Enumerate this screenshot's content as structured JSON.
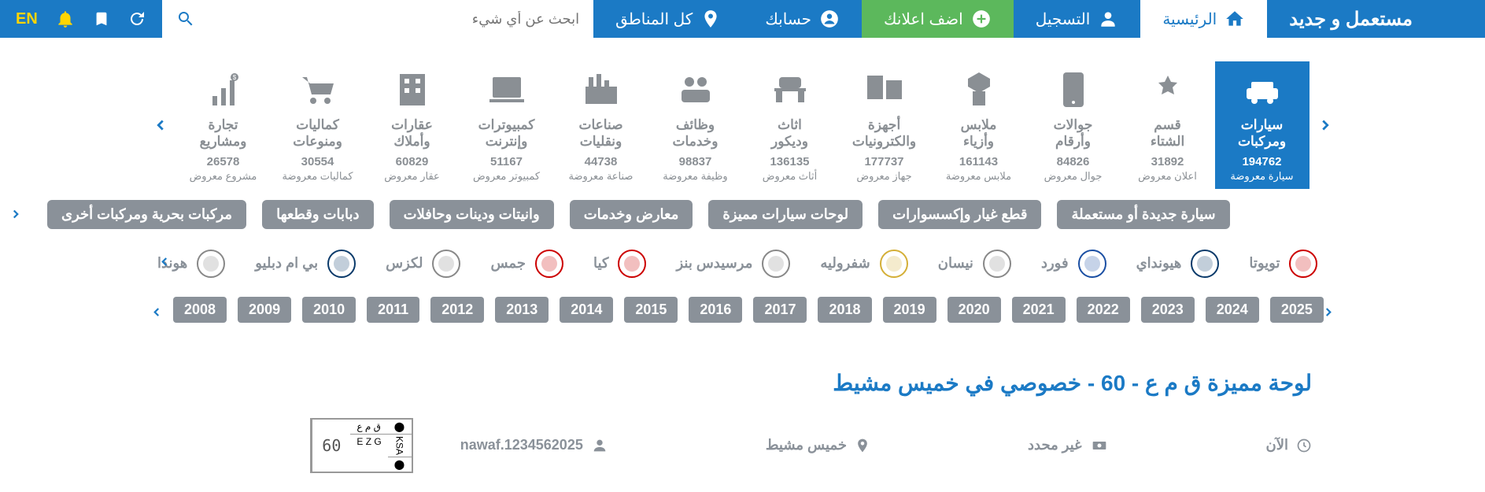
{
  "header": {
    "logo": "مستعمل و جديد",
    "home": "الرئيسية",
    "register": "التسجيل",
    "add_ad": "اضف اعلانك",
    "account": "حسابك",
    "regions": "كل المناطق",
    "search_placeholder": "ابحث عن أي شيء",
    "lang": "EN"
  },
  "categories": [
    {
      "title": "سيارات\nومركبات",
      "count": "194762",
      "sub": "سيارة معروضة",
      "active": true
    },
    {
      "title": "قسم\nالشتاء",
      "count": "31892",
      "sub": "اعلان معروض"
    },
    {
      "title": "جوالات\nوأرقام",
      "count": "84826",
      "sub": "جوال معروض"
    },
    {
      "title": "ملابس\nوأزياء",
      "count": "161143",
      "sub": "ملابس معروضة"
    },
    {
      "title": "أجهزة\nوالكترونيات",
      "count": "177737",
      "sub": "جهاز معروض"
    },
    {
      "title": "اثاث\nوديكور",
      "count": "136135",
      "sub": "أثاث معروض"
    },
    {
      "title": "وظائف\nوخدمات",
      "count": "98837",
      "sub": "وظيفة معروضة"
    },
    {
      "title": "صناعات\nونقليات",
      "count": "44738",
      "sub": "صناعة معروضة"
    },
    {
      "title": "كمبيوترات\nوإنترنت",
      "count": "51167",
      "sub": "كمبيوتر معروض"
    },
    {
      "title": "عقارات\nوأملاك",
      "count": "60829",
      "sub": "عقار معروض"
    },
    {
      "title": "كماليات\nومنوعات",
      "count": "30554",
      "sub": "كماليات معروضة"
    },
    {
      "title": "تجارة\nومشاريع",
      "count": "26578",
      "sub": "مشروع معروض"
    }
  ],
  "pills": [
    "سيارة جديدة أو مستعملة",
    "قطع غيار وإكسسوارات",
    "لوحات سيارات مميزة",
    "معارض وخدمات",
    "وانيتات ودينات وحافلات",
    "دبابات وقطعها",
    "مركبات بحرية ومركبات أخرى"
  ],
  "brands": [
    {
      "label": "تويوتا"
    },
    {
      "label": "هيونداي"
    },
    {
      "label": "فورد"
    },
    {
      "label": "نيسان"
    },
    {
      "label": "شفروليه"
    },
    {
      "label": "مرسيدس بنز"
    },
    {
      "label": "كيا"
    },
    {
      "label": "جمس"
    },
    {
      "label": "لكزس"
    },
    {
      "label": "بي ام دبليو"
    },
    {
      "label": "هوندا"
    }
  ],
  "years": [
    "2025",
    "2024",
    "2023",
    "2022",
    "2021",
    "2020",
    "2019",
    "2018",
    "2017",
    "2016",
    "2015",
    "2014",
    "2013",
    "2012",
    "2011",
    "2010",
    "2009",
    "2008"
  ],
  "listing": {
    "title": "لوحة مميزة ق م ع - 60 - خصوصي في خميس مشيط",
    "time": "الآن",
    "price": "غير محدد",
    "location": "خميس مشيط",
    "user": "nawaf.1234562025",
    "plate_num": "60",
    "plate_ar": "ق م ع",
    "plate_en": "E Z G",
    "plate_ksa": "KSA"
  }
}
